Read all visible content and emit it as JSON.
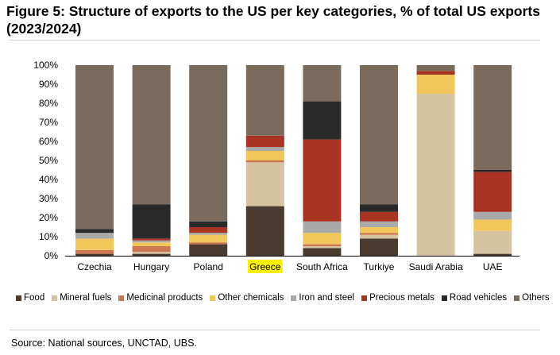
{
  "title": "Figure 5: Structure of exports to the US per key categories, % of total US exports (2023/2024)",
  "source": "Source: National sources, UNCTAD, UBS.",
  "colors": {
    "Food": "#4a3b30",
    "Mineral fuels": "#d6c3a2",
    "Medicinal products": "#cc7752",
    "Other chemicals": "#f1c75c",
    "Iron and steel": "#a9a9a9",
    "Precious metals": "#a93424",
    "Road vehicles": "#2a2a2a",
    "Others": "#7a6b5c",
    "highlight": "#fff200"
  },
  "chart_data": {
    "type": "bar",
    "stacked": true,
    "categories": [
      "Czechia",
      "Hungary",
      "Poland",
      "Greece",
      "South Africa",
      "Turkiye",
      "Saudi Arabia",
      "UAE"
    ],
    "highlighted_category": "Greece",
    "yticks": [
      "0%",
      "10%",
      "20%",
      "30%",
      "40%",
      "50%",
      "60%",
      "70%",
      "80%",
      "90%",
      "100%"
    ],
    "ylim": [
      0,
      100
    ],
    "legend_position": "bottom",
    "grid": false,
    "series": [
      {
        "name": "Food",
        "values": [
          1,
          1,
          6,
          26,
          4,
          9,
          0,
          1
        ]
      },
      {
        "name": "Mineral fuels",
        "values": [
          0,
          1,
          0,
          23,
          1,
          2,
          85,
          12
        ]
      },
      {
        "name": "Medicinal products",
        "values": [
          2,
          3,
          1,
          1,
          1,
          1,
          0,
          0
        ]
      },
      {
        "name": "Other chemicals",
        "values": [
          6,
          2,
          4,
          5,
          6,
          3,
          10,
          6
        ]
      },
      {
        "name": "Iron and steel",
        "values": [
          3,
          1,
          1,
          2,
          6,
          3,
          0,
          4
        ]
      },
      {
        "name": "Precious metals",
        "values": [
          0,
          1,
          3,
          6,
          43,
          5,
          2,
          21
        ]
      },
      {
        "name": "Road vehicles",
        "values": [
          2,
          18,
          3,
          0,
          20,
          4,
          0,
          1
        ]
      },
      {
        "name": "Others",
        "values": [
          86,
          73,
          82,
          37,
          19,
          73,
          3,
          55
        ]
      }
    ]
  }
}
